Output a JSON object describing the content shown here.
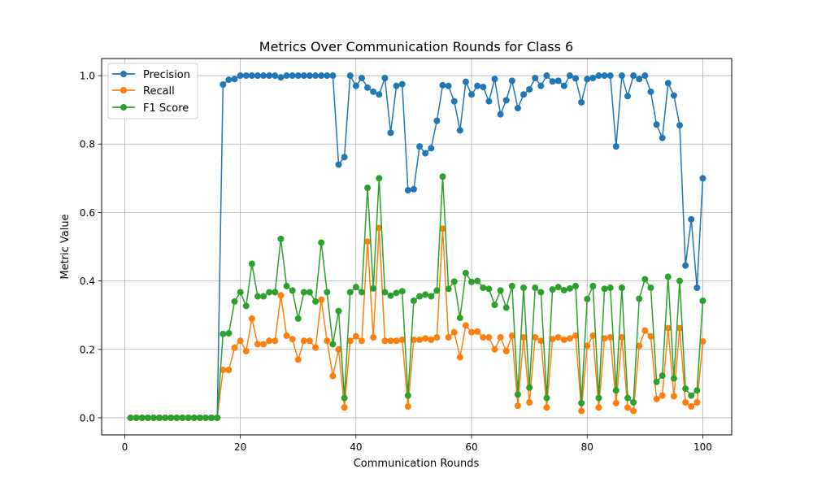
{
  "chart_data": {
    "type": "line",
    "title": "Metrics Over Communication Rounds for Class 6",
    "xlabel": "Communication Rounds",
    "ylabel": "Metric Value",
    "xlim": [
      -4,
      105
    ],
    "ylim": [
      -0.05,
      1.05
    ],
    "xticks": [
      0,
      20,
      40,
      60,
      80,
      100
    ],
    "xtick_labels": [
      "0",
      "20",
      "40",
      "60",
      "80",
      "100"
    ],
    "yticks": [
      0.0,
      0.2,
      0.4,
      0.6,
      0.8,
      1.0
    ],
    "ytick_labels": [
      "0.0",
      "0.2",
      "0.4",
      "0.6",
      "0.8",
      "1.0"
    ],
    "grid": true,
    "legend_position": "top-left",
    "x": [
      1,
      2,
      3,
      4,
      5,
      6,
      7,
      8,
      9,
      10,
      11,
      12,
      13,
      14,
      15,
      16,
      17,
      18,
      19,
      20,
      21,
      22,
      23,
      24,
      25,
      26,
      27,
      28,
      29,
      30,
      31,
      32,
      33,
      34,
      35,
      36,
      37,
      38,
      39,
      40,
      41,
      42,
      43,
      44,
      45,
      46,
      47,
      48,
      49,
      50,
      51,
      52,
      53,
      54,
      55,
      56,
      57,
      58,
      59,
      60,
      61,
      62,
      63,
      64,
      65,
      66,
      67,
      68,
      69,
      70,
      71,
      72,
      73,
      74,
      75,
      76,
      77,
      78,
      79,
      80,
      81,
      82,
      83,
      84,
      85,
      86,
      87,
      88,
      89,
      90,
      91,
      92,
      93,
      94,
      95,
      96,
      97,
      98,
      99,
      100
    ],
    "series": [
      {
        "name": "Precision",
        "color": "#1f77b4",
        "values": [
          0,
          0,
          0,
          0,
          0,
          0,
          0,
          0,
          0,
          0,
          0,
          0,
          0,
          0,
          0,
          0,
          0.974,
          0.988,
          0.99,
          1.0,
          1.0,
          1.0,
          1.0,
          1.0,
          1.0,
          1.0,
          0.995,
          1.0,
          1.0,
          1.0,
          1.0,
          1.0,
          1.0,
          1.0,
          1.0,
          1.0,
          0.74,
          0.762,
          1.0,
          0.97,
          0.993,
          0.965,
          0.953,
          0.945,
          0.993,
          0.833,
          0.97,
          0.975,
          0.665,
          0.668,
          0.793,
          0.773,
          0.788,
          0.868,
          0.972,
          0.97,
          0.925,
          0.84,
          0.982,
          0.945,
          0.97,
          0.967,
          0.925,
          0.99,
          0.887,
          0.928,
          0.985,
          0.905,
          0.945,
          0.96,
          0.993,
          0.97,
          1.0,
          0.983,
          0.985,
          0.97,
          1.0,
          0.992,
          0.922,
          0.99,
          0.993,
          1.0,
          1.0,
          1.0,
          0.793,
          1.0,
          0.94,
          1.0,
          0.99,
          1.0,
          0.953,
          0.857,
          0.818,
          0.978,
          0.942,
          0.855,
          0.445,
          0.58,
          0.38,
          0.7
        ]
      },
      {
        "name": "Recall",
        "color": "#ff7f0e",
        "values": [
          0,
          0,
          0,
          0,
          0,
          0,
          0,
          0,
          0,
          0,
          0,
          0,
          0,
          0,
          0,
          0,
          0.14,
          0.14,
          0.205,
          0.225,
          0.195,
          0.29,
          0.215,
          0.215,
          0.225,
          0.225,
          0.358,
          0.24,
          0.23,
          0.17,
          0.225,
          0.225,
          0.205,
          0.345,
          0.225,
          0.122,
          0.2,
          0.03,
          0.225,
          0.238,
          0.225,
          0.515,
          0.235,
          0.555,
          0.225,
          0.225,
          0.225,
          0.228,
          0.033,
          0.228,
          0.228,
          0.232,
          0.228,
          0.235,
          0.553,
          0.235,
          0.25,
          0.177,
          0.27,
          0.25,
          0.252,
          0.235,
          0.235,
          0.2,
          0.235,
          0.195,
          0.24,
          0.035,
          0.235,
          0.045,
          0.235,
          0.225,
          0.03,
          0.23,
          0.235,
          0.228,
          0.232,
          0.24,
          0.02,
          0.21,
          0.24,
          0.03,
          0.232,
          0.235,
          0.043,
          0.235,
          0.03,
          0.02,
          0.21,
          0.255,
          0.238,
          0.055,
          0.065,
          0.262,
          0.063,
          0.262,
          0.045,
          0.033,
          0.045,
          0.223
        ]
      },
      {
        "name": "F1 Score",
        "color": "#2ca02c",
        "values": [
          0,
          0,
          0,
          0,
          0,
          0,
          0,
          0,
          0,
          0,
          0,
          0,
          0,
          0,
          0,
          0,
          0.245,
          0.247,
          0.34,
          0.367,
          0.327,
          0.45,
          0.355,
          0.355,
          0.367,
          0.367,
          0.523,
          0.385,
          0.372,
          0.29,
          0.367,
          0.367,
          0.34,
          0.512,
          0.367,
          0.215,
          0.312,
          0.058,
          0.367,
          0.382,
          0.367,
          0.672,
          0.378,
          0.7,
          0.367,
          0.357,
          0.365,
          0.37,
          0.065,
          0.342,
          0.355,
          0.36,
          0.355,
          0.372,
          0.705,
          0.377,
          0.398,
          0.292,
          0.423,
          0.397,
          0.4,
          0.38,
          0.377,
          0.33,
          0.372,
          0.322,
          0.385,
          0.068,
          0.38,
          0.088,
          0.38,
          0.367,
          0.058,
          0.375,
          0.382,
          0.373,
          0.378,
          0.385,
          0.043,
          0.347,
          0.385,
          0.058,
          0.377,
          0.38,
          0.08,
          0.38,
          0.058,
          0.045,
          0.348,
          0.405,
          0.38,
          0.105,
          0.123,
          0.412,
          0.115,
          0.4,
          0.085,
          0.065,
          0.08,
          0.342
        ]
      }
    ]
  }
}
